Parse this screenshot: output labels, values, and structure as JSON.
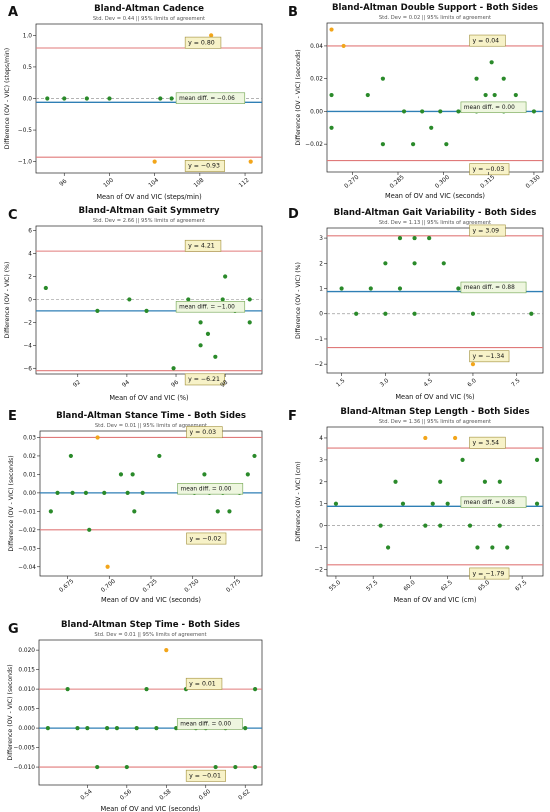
{
  "chart_data": [
    {
      "panel": "A",
      "type": "scatter",
      "title": "Bland-Altman Cadence",
      "subtitle": "Std. Dev = 0.44 || 95% limits of agreement",
      "xlabel": "Mean of OV and VIC (steps/min)",
      "ylabel": "Difference (OV - VIC) (steps/min)",
      "xlim": [
        93.5,
        113.5
      ],
      "ylim": [
        -1.18,
        1.18
      ],
      "xticks": [
        96,
        100,
        104,
        108,
        112
      ],
      "xtick_labels": [
        "96",
        "100",
        "104",
        "108",
        "112"
      ],
      "yticks": [
        -1.0,
        -0.5,
        0.0,
        0.5,
        1.0
      ],
      "ytick_labels": [
        "−1.0",
        "−0.5",
        "0.0",
        "0.5",
        "1.0"
      ],
      "mean_diff": -0.06,
      "upper_loa": 0.8,
      "lower_loa": -0.93,
      "upper_label": "y = 0.80",
      "lower_label": "y = −0.93",
      "mean_label": "mean diff. = −0.06",
      "points": [
        {
          "x": 94.5,
          "y": 0,
          "o": false
        },
        {
          "x": 96,
          "y": 0,
          "o": false
        },
        {
          "x": 98,
          "y": 0,
          "o": false
        },
        {
          "x": 100,
          "y": 0,
          "o": false
        },
        {
          "x": 104,
          "y": -1,
          "o": true
        },
        {
          "x": 104.5,
          "y": 0,
          "o": false
        },
        {
          "x": 105.5,
          "y": 0,
          "o": false
        },
        {
          "x": 107,
          "y": 0,
          "o": false
        },
        {
          "x": 108,
          "y": 0,
          "o": false
        },
        {
          "x": 108.5,
          "y": 0,
          "o": false
        },
        {
          "x": 109,
          "y": 1,
          "o": true
        },
        {
          "x": 110,
          "y": 0,
          "o": false
        },
        {
          "x": 111.5,
          "y": 0,
          "o": false
        },
        {
          "x": 112.5,
          "y": -1,
          "o": true
        }
      ]
    },
    {
      "panel": "B",
      "type": "scatter",
      "title": "Bland-Altman Double Support - Both Sides",
      "subtitle": "Std. Dev = 0.02 || 95% limits of agreement",
      "xlabel": "Mean of OV and VIC (seconds)",
      "ylabel": "Difference (OV - VIC) (seconds)",
      "xlim": [
        0.2615,
        0.333
      ],
      "ylim": [
        -0.037,
        0.054
      ],
      "xticks": [
        0.27,
        0.285,
        0.3,
        0.315,
        0.33
      ],
      "xtick_labels": [
        "0.270",
        "0.285",
        "0.300",
        "0.315",
        "0.330"
      ],
      "yticks": [
        -0.02,
        0.0,
        0.02,
        0.04
      ],
      "ytick_labels": [
        "−0.02",
        "0.00",
        "0.02",
        "0.04"
      ],
      "mean_diff": 0.0,
      "upper_loa": 0.04,
      "lower_loa": -0.03,
      "upper_label": "y = 0.04",
      "lower_label": "y = −0.03",
      "mean_label": "mean diff. = 0.00",
      "points": [
        {
          "x": 0.263,
          "y": 0.05,
          "o": true
        },
        {
          "x": 0.263,
          "y": 0.01,
          "o": false
        },
        {
          "x": 0.263,
          "y": -0.01,
          "o": false
        },
        {
          "x": 0.267,
          "y": 0.04,
          "o": true
        },
        {
          "x": 0.275,
          "y": 0.01,
          "o": false
        },
        {
          "x": 0.28,
          "y": 0.02,
          "o": false
        },
        {
          "x": 0.28,
          "y": -0.02,
          "o": false
        },
        {
          "x": 0.287,
          "y": 0,
          "o": false
        },
        {
          "x": 0.29,
          "y": -0.02,
          "o": false
        },
        {
          "x": 0.293,
          "y": 0,
          "o": false
        },
        {
          "x": 0.296,
          "y": -0.01,
          "o": false
        },
        {
          "x": 0.299,
          "y": 0,
          "o": false
        },
        {
          "x": 0.301,
          "y": -0.02,
          "o": false
        },
        {
          "x": 0.305,
          "y": 0,
          "o": false
        },
        {
          "x": 0.311,
          "y": 0.02,
          "o": false
        },
        {
          "x": 0.311,
          "y": 0,
          "o": false
        },
        {
          "x": 0.314,
          "y": 0.01,
          "o": false
        },
        {
          "x": 0.316,
          "y": 0.03,
          "o": false
        },
        {
          "x": 0.317,
          "y": 0.01,
          "o": false
        },
        {
          "x": 0.32,
          "y": 0.02,
          "o": false
        },
        {
          "x": 0.32,
          "y": 0,
          "o": false
        },
        {
          "x": 0.324,
          "y": 0.01,
          "o": false
        },
        {
          "x": 0.33,
          "y": 0,
          "o": false
        }
      ]
    },
    {
      "panel": "C",
      "type": "scatter",
      "title": "Bland-Altman Gait Symmetry",
      "subtitle": "Std. Dev = 2.66 || 95% limits of agreement",
      "xlabel": "Mean of OV and VIC (%)",
      "ylabel": "Difference (OV - VIC) (%)",
      "xlim": [
        90.3,
        99.5
      ],
      "ylim": [
        -6.5,
        6.4
      ],
      "xticks": [
        92,
        94,
        96,
        98
      ],
      "xtick_labels": [
        "92",
        "94",
        "96",
        "98"
      ],
      "yticks": [
        -6,
        -4,
        -2,
        0,
        2,
        4,
        6
      ],
      "ytick_labels": [
        "−6",
        "−4",
        "−2",
        "0",
        "2",
        "4",
        "6"
      ],
      "mean_diff": -1.0,
      "upper_loa": 4.21,
      "lower_loa": -6.21,
      "upper_label": "y = 4.21",
      "lower_label": "y = −6.21",
      "mean_label": "mean diff. = −1.00",
      "points": [
        {
          "x": 90.7,
          "y": 1,
          "o": false
        },
        {
          "x": 92.8,
          "y": -1,
          "o": false
        },
        {
          "x": 94.1,
          "y": 0,
          "o": false
        },
        {
          "x": 94.8,
          "y": -1,
          "o": false
        },
        {
          "x": 95.9,
          "y": -6,
          "o": false
        },
        {
          "x": 96.5,
          "y": 0,
          "o": false
        },
        {
          "x": 97.0,
          "y": -2,
          "o": false
        },
        {
          "x": 97.0,
          "y": -4,
          "o": false
        },
        {
          "x": 97.3,
          "y": -3,
          "o": false
        },
        {
          "x": 97.6,
          "y": 5,
          "o": true
        },
        {
          "x": 97.6,
          "y": -5,
          "o": false
        },
        {
          "x": 97.9,
          "y": 0,
          "o": false
        },
        {
          "x": 98.0,
          "y": 2,
          "o": false
        },
        {
          "x": 98.4,
          "y": -1,
          "o": false
        },
        {
          "x": 99.0,
          "y": 0,
          "o": false
        },
        {
          "x": 99.0,
          "y": -2,
          "o": false
        }
      ]
    },
    {
      "panel": "D",
      "type": "scatter",
      "title": "Bland-Altman Gait Variability - Both Sides",
      "subtitle": "Std. Dev = 1.13 || 95% limits of agreement",
      "xlabel": "Mean of OV and VIC (%)",
      "ylabel": "Difference (OV - VIC) (%)",
      "xlim": [
        1.0,
        8.4
      ],
      "ylim": [
        -2.35,
        3.4
      ],
      "xticks": [
        1.5,
        3.0,
        4.5,
        6.0,
        7.5
      ],
      "xtick_labels": [
        "1.5",
        "3.0",
        "4.5",
        "6.0",
        "7.5"
      ],
      "yticks": [
        -2,
        -1,
        0,
        1,
        2,
        3
      ],
      "ytick_labels": [
        "−2",
        "−1",
        "0",
        "1",
        "2",
        "3"
      ],
      "mean_diff": 0.88,
      "upper_loa": 3.09,
      "lower_loa": -1.34,
      "upper_label": "y = 3.09",
      "lower_label": "y = −1.34",
      "mean_label": "mean diff. = 0.88",
      "points": [
        {
          "x": 1.5,
          "y": 1,
          "o": false
        },
        {
          "x": 2.0,
          "y": 0,
          "o": false
        },
        {
          "x": 2.5,
          "y": 1,
          "o": false
        },
        {
          "x": 3.0,
          "y": 2,
          "o": false
        },
        {
          "x": 3.0,
          "y": 0,
          "o": false
        },
        {
          "x": 3.5,
          "y": 3,
          "o": false
        },
        {
          "x": 3.5,
          "y": 1,
          "o": false
        },
        {
          "x": 4.0,
          "y": 3,
          "o": false
        },
        {
          "x": 4.0,
          "y": 2,
          "o": false
        },
        {
          "x": 4.0,
          "y": 0,
          "o": false
        },
        {
          "x": 4.5,
          "y": 3,
          "o": false
        },
        {
          "x": 5.0,
          "y": 2,
          "o": false
        },
        {
          "x": 5.5,
          "y": 1,
          "o": false
        },
        {
          "x": 6.0,
          "y": 0,
          "o": false
        },
        {
          "x": 6.0,
          "y": -2,
          "o": true
        },
        {
          "x": 8.0,
          "y": 0,
          "o": false
        }
      ]
    },
    {
      "panel": "E",
      "type": "scatter",
      "title": "Bland-Altman Stance Time - Both Sides",
      "subtitle": "Std. Dev = 0.01 || 95% limits of agreement",
      "xlabel": "Mean of OV and VIC (seconds)",
      "ylabel": "Difference (OV - VIC) (seconds)",
      "xlim": [
        0.6585,
        0.7915
      ],
      "ylim": [
        -0.045,
        0.0335
      ],
      "xticks": [
        0.675,
        0.7,
        0.725,
        0.75,
        0.775
      ],
      "xtick_labels": [
        "0.675",
        "0.700",
        "0.725",
        "0.750",
        "0.775"
      ],
      "yticks": [
        -0.04,
        -0.03,
        -0.02,
        -0.01,
        0.0,
        0.01,
        0.02,
        0.03
      ],
      "ytick_labels": [
        "−0.04",
        "−0.03",
        "−0.02",
        "−0.01",
        "0.00",
        "0.01",
        "0.02",
        "0.03"
      ],
      "mean_diff": 0.0,
      "upper_loa": 0.03,
      "lower_loa": -0.02,
      "upper_label": "y = 0.03",
      "lower_label": "y = −0.02",
      "mean_label": "mean diff. = 0.00",
      "points": [
        {
          "x": 0.665,
          "y": -0.01,
          "o": false
        },
        {
          "x": 0.669,
          "y": 0,
          "o": false
        },
        {
          "x": 0.677,
          "y": 0.02,
          "o": false
        },
        {
          "x": 0.678,
          "y": 0,
          "o": false
        },
        {
          "x": 0.686,
          "y": 0,
          "o": false
        },
        {
          "x": 0.688,
          "y": -0.02,
          "o": false
        },
        {
          "x": 0.693,
          "y": 0.03,
          "o": true
        },
        {
          "x": 0.697,
          "y": 0,
          "o": false
        },
        {
          "x": 0.699,
          "y": -0.04,
          "o": true
        },
        {
          "x": 0.707,
          "y": 0.01,
          "o": false
        },
        {
          "x": 0.711,
          "y": 0,
          "o": false
        },
        {
          "x": 0.714,
          "y": 0.01,
          "o": false
        },
        {
          "x": 0.715,
          "y": -0.01,
          "o": false
        },
        {
          "x": 0.72,
          "y": 0,
          "o": false
        },
        {
          "x": 0.73,
          "y": 0.02,
          "o": false
        },
        {
          "x": 0.751,
          "y": 0,
          "o": false
        },
        {
          "x": 0.757,
          "y": 0.01,
          "o": false
        },
        {
          "x": 0.76,
          "y": 0,
          "o": false
        },
        {
          "x": 0.765,
          "y": -0.01,
          "o": false
        },
        {
          "x": 0.768,
          "y": 0,
          "o": false
        },
        {
          "x": 0.772,
          "y": -0.01,
          "o": false
        },
        {
          "x": 0.778,
          "y": 0,
          "o": false
        },
        {
          "x": 0.783,
          "y": 0.01,
          "o": false
        },
        {
          "x": 0.787,
          "y": 0.02,
          "o": false
        }
      ]
    },
    {
      "panel": "F",
      "type": "scatter",
      "title": "Bland-Altman Step Length - Both Sides",
      "subtitle": "Std. Dev = 1.36 || 95% limits of agreement",
      "xlabel": "Mean of OV and VIC (cm)",
      "ylabel": "Difference (OV - VIC) (cm)",
      "xlim": [
        54.4,
        68.9
      ],
      "ylim": [
        -2.3,
        4.5
      ],
      "xticks": [
        55.0,
        57.5,
        60.0,
        62.5,
        65.0,
        67.5
      ],
      "xtick_labels": [
        "55.0",
        "57.5",
        "60.0",
        "62.5",
        "65.0",
        "67.5"
      ],
      "yticks": [
        -2,
        -1,
        0,
        1,
        2,
        3,
        4
      ],
      "ytick_labels": [
        "−2",
        "−1",
        "0",
        "1",
        "2",
        "3",
        "4"
      ],
      "mean_diff": 0.88,
      "upper_loa": 3.54,
      "lower_loa": -1.79,
      "upper_label": "y = 3.54",
      "lower_label": "y = −1.79",
      "mean_label": "mean diff. = 0.88",
      "points": [
        {
          "x": 55.0,
          "y": 1,
          "o": false
        },
        {
          "x": 58.0,
          "y": 0,
          "o": false
        },
        {
          "x": 58.5,
          "y": -1,
          "o": false
        },
        {
          "x": 59.0,
          "y": 2,
          "o": false
        },
        {
          "x": 59.5,
          "y": 1,
          "o": false
        },
        {
          "x": 61.0,
          "y": 4,
          "o": true
        },
        {
          "x": 61.0,
          "y": 0,
          "o": false
        },
        {
          "x": 61.5,
          "y": 1,
          "o": false
        },
        {
          "x": 62.0,
          "y": 2,
          "o": false
        },
        {
          "x": 62.0,
          "y": 0,
          "o": false
        },
        {
          "x": 62.5,
          "y": 1,
          "o": false
        },
        {
          "x": 63.0,
          "y": 4,
          "o": true
        },
        {
          "x": 63.5,
          "y": 3,
          "o": false
        },
        {
          "x": 64.0,
          "y": 0,
          "o": false
        },
        {
          "x": 64.5,
          "y": 1,
          "o": false
        },
        {
          "x": 64.5,
          "y": -1,
          "o": false
        },
        {
          "x": 65.0,
          "y": 2,
          "o": false
        },
        {
          "x": 65.5,
          "y": -1,
          "o": false
        },
        {
          "x": 66.0,
          "y": 2,
          "o": false
        },
        {
          "x": 66.0,
          "y": 0,
          "o": false
        },
        {
          "x": 66.5,
          "y": -1,
          "o": false
        },
        {
          "x": 68.5,
          "y": 3,
          "o": false
        },
        {
          "x": 68.5,
          "y": 1,
          "o": false
        }
      ]
    },
    {
      "panel": "G",
      "type": "scatter",
      "title": "Bland-Altman Step Time - Both Sides",
      "subtitle": "Std. Dev = 0.01 || 95% limits of agreement",
      "xlabel": "Mean of OV and VIC (seconds)",
      "ylabel": "Difference (OV - VIC) (seconds)",
      "xlim": [
        0.5155,
        0.6285
      ],
      "ylim": [
        -0.0146,
        0.0226
      ],
      "xticks": [
        0.54,
        0.56,
        0.58,
        0.6,
        0.62
      ],
      "xtick_labels": [
        "0.54",
        "0.56",
        "0.58",
        "0.60",
        "0.62"
      ],
      "yticks": [
        -0.01,
        -0.005,
        0.0,
        0.005,
        0.01,
        0.015,
        0.02
      ],
      "ytick_labels": [
        "−0.010",
        "−0.005",
        "0.000",
        "0.005",
        "0.010",
        "0.015",
        "0.020"
      ],
      "mean_diff": 0.0,
      "upper_loa": 0.01,
      "lower_loa": -0.01,
      "upper_label": "y = 0.01",
      "lower_label": "y = −0.01",
      "mean_label": "mean diff. = 0.00",
      "points": [
        {
          "x": 0.52,
          "y": 0,
          "o": false
        },
        {
          "x": 0.53,
          "y": 0.01,
          "o": false
        },
        {
          "x": 0.535,
          "y": 0,
          "o": false
        },
        {
          "x": 0.54,
          "y": 0,
          "o": false
        },
        {
          "x": 0.545,
          "y": -0.01,
          "o": false
        },
        {
          "x": 0.55,
          "y": 0,
          "o": false
        },
        {
          "x": 0.555,
          "y": 0,
          "o": false
        },
        {
          "x": 0.56,
          "y": -0.01,
          "o": false
        },
        {
          "x": 0.565,
          "y": 0,
          "o": false
        },
        {
          "x": 0.57,
          "y": 0.01,
          "o": false
        },
        {
          "x": 0.575,
          "y": 0,
          "o": false
        },
        {
          "x": 0.58,
          "y": 0.02,
          "o": true
        },
        {
          "x": 0.585,
          "y": 0,
          "o": false
        },
        {
          "x": 0.59,
          "y": 0.01,
          "o": false
        },
        {
          "x": 0.595,
          "y": 0,
          "o": false
        },
        {
          "x": 0.6,
          "y": 0,
          "o": false
        },
        {
          "x": 0.605,
          "y": -0.01,
          "o": false
        },
        {
          "x": 0.61,
          "y": 0,
          "o": false
        },
        {
          "x": 0.615,
          "y": -0.01,
          "o": false
        },
        {
          "x": 0.62,
          "y": 0,
          "o": false
        },
        {
          "x": 0.625,
          "y": 0.01,
          "o": false
        },
        {
          "x": 0.625,
          "y": -0.01,
          "o": false
        }
      ]
    }
  ],
  "colors": {
    "inlier": "#2a8a2a",
    "outlier": "#f2a51a",
    "mean_line": "#2f7fb5",
    "loa_line": "#e07a7a",
    "zero_line": "#9a9a9a",
    "box_fill": "#f7f2c8",
    "box_edge": "#a08f3a",
    "mean_box_fill": "#eef6df",
    "mean_box_edge": "#6fa34d",
    "text": "#111111",
    "subtext": "#555555"
  }
}
